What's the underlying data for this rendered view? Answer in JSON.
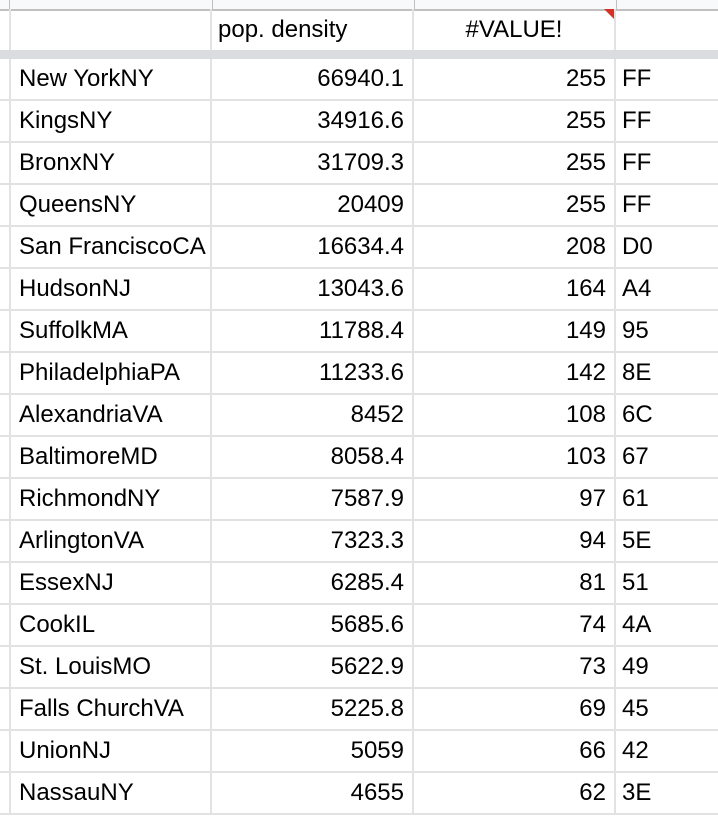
{
  "header": {
    "col_a": "",
    "col_b": "pop. density",
    "col_c": "#VALUE!",
    "col_d": ""
  },
  "rows": [
    {
      "name": "New YorkNY",
      "density": "66940.1",
      "value": "255",
      "hex": "FF"
    },
    {
      "name": "KingsNY",
      "density": "34916.6",
      "value": "255",
      "hex": "FF"
    },
    {
      "name": "BronxNY",
      "density": "31709.3",
      "value": "255",
      "hex": "FF"
    },
    {
      "name": "QueensNY",
      "density": "20409",
      "value": "255",
      "hex": "FF"
    },
    {
      "name": "San FranciscoCA",
      "density": "16634.4",
      "value": "208",
      "hex": "D0"
    },
    {
      "name": "HudsonNJ",
      "density": "13043.6",
      "value": "164",
      "hex": "A4"
    },
    {
      "name": "SuffolkMA",
      "density": "11788.4",
      "value": "149",
      "hex": "95"
    },
    {
      "name": "PhiladelphiaPA",
      "density": "11233.6",
      "value": "142",
      "hex": "8E"
    },
    {
      "name": "AlexandriaVA",
      "density": "8452",
      "value": "108",
      "hex": "6C"
    },
    {
      "name": "BaltimoreMD",
      "density": "8058.4",
      "value": "103",
      "hex": "67"
    },
    {
      "name": "RichmondNY",
      "density": "7587.9",
      "value": "97",
      "hex": "61"
    },
    {
      "name": "ArlingtonVA",
      "density": "7323.3",
      "value": "94",
      "hex": "5E"
    },
    {
      "name": "EssexNJ",
      "density": "6285.4",
      "value": "81",
      "hex": "51"
    },
    {
      "name": "CookIL",
      "density": "5685.6",
      "value": "74",
      "hex": "4A"
    },
    {
      "name": "St. LouisMO",
      "density": "5622.9",
      "value": "73",
      "hex": "49"
    },
    {
      "name": "Falls ChurchVA",
      "density": "5225.8",
      "value": "69",
      "hex": "45"
    },
    {
      "name": "UnionNJ",
      "density": "5059",
      "value": "66",
      "hex": "42"
    },
    {
      "name": "NassauNY",
      "density": "4655",
      "value": "62",
      "hex": "3E"
    }
  ],
  "colors": {
    "error_flag": "#d93025",
    "frozen_divider": "#dadce0",
    "gridline": "#e2e2e2"
  }
}
